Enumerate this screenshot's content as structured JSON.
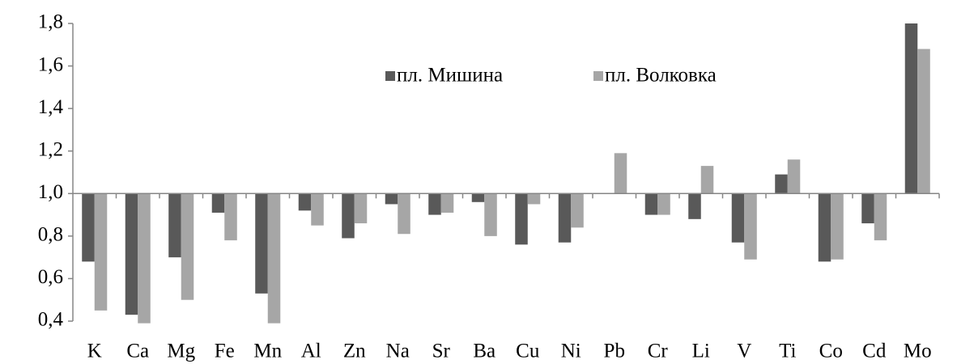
{
  "chart_data": {
    "type": "bar",
    "categories": [
      "K",
      "Ca",
      "Mg",
      "Fe",
      "Mn",
      "Al",
      "Zn",
      "Na",
      "Sr",
      "Ba",
      "Cu",
      "Ni",
      "Pb",
      "Cr",
      "Li",
      "V",
      "Ti",
      "Co",
      "Cd",
      "Mo"
    ],
    "series": [
      {
        "name": "пл. Мишина",
        "color": "#595959",
        "values": [
          0.68,
          0.43,
          0.7,
          0.91,
          0.53,
          0.92,
          0.79,
          0.95,
          0.9,
          0.96,
          0.76,
          0.77,
          1.0,
          0.9,
          0.88,
          0.77,
          1.09,
          0.68,
          0.86,
          1.8
        ]
      },
      {
        "name": "пл. Волковка",
        "color": "#a6a6a6",
        "values": [
          0.45,
          0.39,
          0.5,
          0.78,
          0.39,
          0.85,
          0.86,
          0.81,
          0.91,
          0.8,
          0.95,
          0.84,
          1.19,
          0.9,
          1.13,
          0.69,
          1.16,
          0.69,
          0.78,
          1.68
        ]
      }
    ],
    "ylim": [
      0.4,
      1.8
    ],
    "yticks": [
      {
        "value": 0.4,
        "label": "0,4"
      },
      {
        "value": 0.6,
        "label": "0,6"
      },
      {
        "value": 0.8,
        "label": "0,8"
      },
      {
        "value": 1.0,
        "label": "1,0"
      },
      {
        "value": 1.2,
        "label": "1,2"
      },
      {
        "value": 1.4,
        "label": "1,4"
      },
      {
        "value": 1.6,
        "label": "1,6"
      },
      {
        "value": 1.8,
        "label": "1,8"
      }
    ],
    "x_axis_crosses": 1.0,
    "grid": false,
    "legend": "top"
  }
}
